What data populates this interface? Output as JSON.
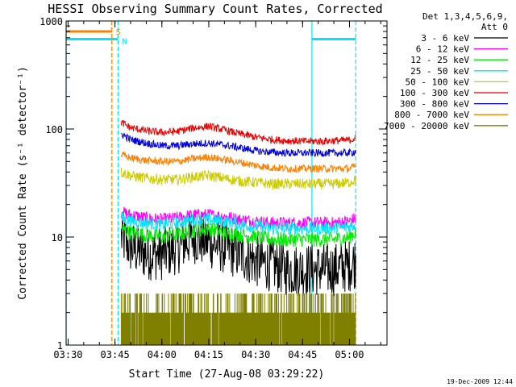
{
  "chart_data": {
    "type": "line",
    "title": "HESSI Observing Summary Count Rates, Corrected",
    "xlabel": "Start Time (27-Aug-08 03:29:22)",
    "ylabel": "Corrected Count Rate (s⁻¹ detector⁻¹)",
    "yscale": "log",
    "ylim": [
      1,
      1000
    ],
    "xlim": [
      "03:29:22",
      "05:12:00"
    ],
    "x_ticks": [
      "03:30",
      "03:45",
      "04:00",
      "04:15",
      "04:30",
      "04:45",
      "05:00"
    ],
    "y_ticks": [
      "1",
      "10",
      "100",
      "1000"
    ],
    "legend_placement": "top-right",
    "legend_header": [
      "Det 1,3,4,5,6,9,",
      "Att 0"
    ],
    "timestamp": "19-Dec-2009 12:44",
    "annotations": [
      {
        "label": "S",
        "color": "#ff7f00"
      },
      {
        "label": "N",
        "color": "#00e5ff"
      }
    ],
    "series": [
      {
        "name": "3 - 6 keV",
        "color": "#000000",
        "x": [
          "03:47",
          "03:50",
          "03:55",
          "04:00",
          "04:05",
          "04:10",
          "04:15",
          "04:20",
          "04:25",
          "04:30",
          "04:35",
          "04:40",
          "04:45",
          "04:50",
          "04:55",
          "05:00",
          "05:02"
        ],
        "y": [
          10,
          8,
          7,
          7,
          8,
          10,
          9,
          8,
          7,
          6,
          5.5,
          5,
          5,
          5,
          5,
          5.5,
          6
        ]
      },
      {
        "name": "6 - 12 keV",
        "color": "#ff00ff",
        "x": [
          "03:47",
          "03:50",
          "03:55",
          "04:00",
          "04:05",
          "04:10",
          "04:15",
          "04:20",
          "04:25",
          "04:30",
          "04:35",
          "04:40",
          "04:45",
          "04:50",
          "04:55",
          "05:00",
          "05:02"
        ],
        "y": [
          17,
          16,
          15,
          14.5,
          15,
          16,
          16,
          15.5,
          14.5,
          14,
          13.5,
          13.5,
          13.5,
          13.5,
          13.5,
          14,
          15
        ]
      },
      {
        "name": "12 - 25 keV",
        "color": "#00ee00",
        "x": [
          "03:47",
          "03:50",
          "03:55",
          "04:00",
          "04:05",
          "04:10",
          "04:15",
          "04:20",
          "04:25",
          "04:30",
          "04:35",
          "04:40",
          "04:45",
          "04:50",
          "04:55",
          "05:00",
          "05:02"
        ],
        "y": [
          12,
          11,
          10.5,
          10,
          10.5,
          11.5,
          12,
          11,
          10.5,
          10,
          9.5,
          9.5,
          9.5,
          9.5,
          9.5,
          10,
          11
        ]
      },
      {
        "name": "25 - 50 keV",
        "color": "#00e5ff",
        "x": [
          "03:47",
          "03:50",
          "03:55",
          "04:00",
          "04:05",
          "04:10",
          "04:15",
          "04:20",
          "04:25",
          "04:30",
          "04:35",
          "04:40",
          "04:45",
          "04:50",
          "04:55",
          "05:00",
          "05:02"
        ],
        "y": [
          15,
          14,
          13.5,
          13,
          13.5,
          14.5,
          14.5,
          14,
          13,
          12.5,
          12,
          12,
          12,
          12,
          12,
          12.5,
          13
        ]
      },
      {
        "name": "50 - 100 keV",
        "color": "#cccc00",
        "x": [
          "03:47",
          "03:50",
          "03:55",
          "04:00",
          "04:05",
          "04:10",
          "04:15",
          "04:20",
          "04:25",
          "04:30",
          "04:35",
          "04:40",
          "04:45",
          "04:50",
          "04:55",
          "05:00",
          "05:02"
        ],
        "y": [
          40,
          37,
          35,
          34,
          34,
          36,
          37,
          35,
          33,
          32,
          31,
          31,
          31,
          31,
          31,
          32,
          34
        ]
      },
      {
        "name": "100 - 300 keV",
        "color": "#ee0000",
        "x": [
          "03:47",
          "03:50",
          "03:55",
          "04:00",
          "04:05",
          "04:10",
          "04:15",
          "04:20",
          "04:25",
          "04:30",
          "04:35",
          "04:40",
          "04:45",
          "04:50",
          "04:55",
          "05:00",
          "05:02"
        ],
        "y": [
          115,
          103,
          96,
          93,
          95,
          102,
          106,
          98,
          90,
          84,
          80,
          78,
          77,
          77,
          78,
          79,
          82
        ]
      },
      {
        "name": "300 - 800 keV",
        "color": "#0000dd",
        "x": [
          "03:47",
          "03:50",
          "03:55",
          "04:00",
          "04:05",
          "04:10",
          "04:15",
          "04:20",
          "04:25",
          "04:30",
          "04:35",
          "04:40",
          "04:45",
          "04:50",
          "04:55",
          "05:00",
          "05:02"
        ],
        "y": [
          90,
          80,
          74,
          70,
          70,
          73,
          74,
          71,
          67,
          63,
          61,
          60,
          60,
          60,
          60,
          60,
          62
        ]
      },
      {
        "name": "800 - 7000 keV",
        "color": "#ff7f00",
        "x": [
          "03:47",
          "03:50",
          "03:55",
          "04:00",
          "04:05",
          "04:10",
          "04:15",
          "04:20",
          "04:25",
          "04:30",
          "04:35",
          "04:40",
          "04:45",
          "04:50",
          "04:55",
          "05:00",
          "05:02"
        ],
        "y": [
          58,
          54,
          51,
          50,
          50,
          53,
          55,
          52,
          49,
          46,
          44,
          43,
          43,
          43,
          43,
          43,
          45
        ]
      },
      {
        "name": "7000 - 20000 keV",
        "color": "#808000",
        "x": [
          "03:47",
          "03:50",
          "03:55",
          "04:00",
          "04:05",
          "04:10",
          "04:15",
          "04:20",
          "04:25",
          "04:30",
          "04:35",
          "04:40",
          "04:45",
          "04:50",
          "04:55",
          "05:00",
          "05:02"
        ],
        "y": [
          2,
          2,
          2,
          2,
          3,
          2,
          3,
          2,
          3,
          2,
          2,
          2,
          2,
          2,
          2,
          3,
          2
        ]
      }
    ]
  }
}
